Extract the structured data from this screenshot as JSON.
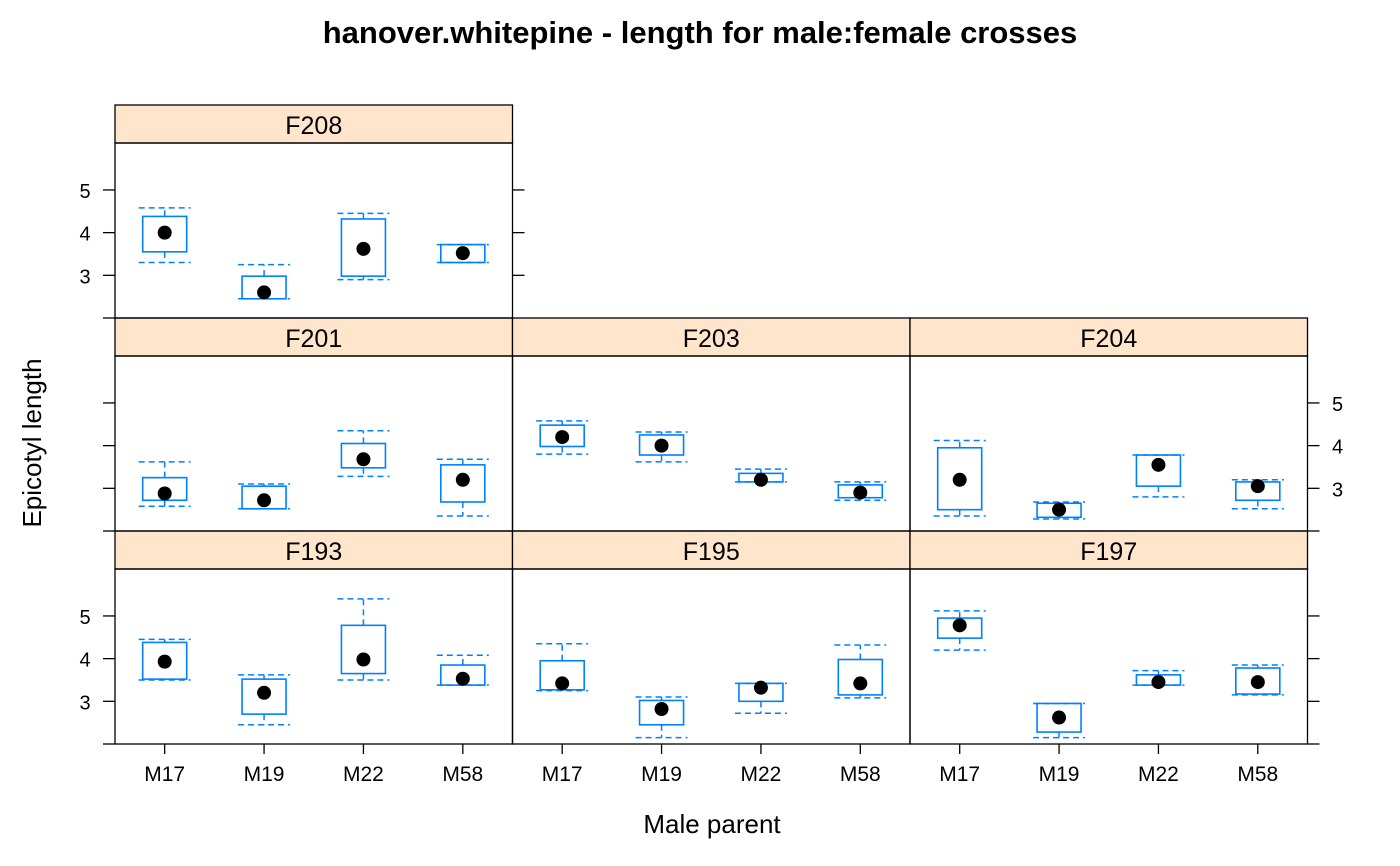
{
  "chart_data": {
    "type": "box",
    "title": "hanover.whitepine - length for male:female crosses",
    "xlabel": "Male parent",
    "ylabel": "Epicotyl length",
    "categories": [
      "M17",
      "M19",
      "M22",
      "M58"
    ],
    "ylim": [
      2.0,
      6.1
    ],
    "yticks": [
      3,
      4,
      5
    ],
    "colors": {
      "strip": "#ffe5cc",
      "box": "#0080ff",
      "point": "#000000",
      "frame": "#000000"
    },
    "panels": [
      {
        "name": "F193",
        "row": 0,
        "col": 0,
        "boxes": [
          {
            "category": "M17",
            "min": 3.5,
            "q1": 3.52,
            "median": 3.93,
            "q3": 4.38,
            "max": 4.45
          },
          {
            "category": "M19",
            "min": 2.45,
            "q1": 2.7,
            "median": 3.2,
            "q3": 3.52,
            "max": 3.62
          },
          {
            "category": "M22",
            "min": 3.5,
            "q1": 3.65,
            "median": 3.98,
            "q3": 4.78,
            "max": 5.4
          },
          {
            "category": "M58",
            "min": 3.38,
            "q1": 3.38,
            "median": 3.53,
            "q3": 3.85,
            "max": 4.08
          }
        ]
      },
      {
        "name": "F195",
        "row": 0,
        "col": 1,
        "boxes": [
          {
            "category": "M17",
            "min": 3.25,
            "q1": 3.27,
            "median": 3.42,
            "q3": 3.95,
            "max": 4.35
          },
          {
            "category": "M19",
            "min": 2.15,
            "q1": 2.45,
            "median": 2.82,
            "q3": 3.02,
            "max": 3.1
          },
          {
            "category": "M22",
            "min": 2.72,
            "q1": 3.0,
            "median": 3.32,
            "q3": 3.42,
            "max": 3.42
          },
          {
            "category": "M58",
            "min": 3.08,
            "q1": 3.15,
            "median": 3.42,
            "q3": 3.98,
            "max": 4.32
          }
        ]
      },
      {
        "name": "F197",
        "row": 0,
        "col": 2,
        "boxes": [
          {
            "category": "M17",
            "min": 4.2,
            "q1": 4.48,
            "median": 4.78,
            "q3": 4.95,
            "max": 5.12
          },
          {
            "category": "M19",
            "min": 2.15,
            "q1": 2.28,
            "median": 2.62,
            "q3": 2.95,
            "max": 2.95
          },
          {
            "category": "M22",
            "min": 3.38,
            "q1": 3.38,
            "median": 3.45,
            "q3": 3.62,
            "max": 3.72
          },
          {
            "category": "M58",
            "min": 3.15,
            "q1": 3.17,
            "median": 3.45,
            "q3": 3.78,
            "max": 3.85
          }
        ]
      },
      {
        "name": "F201",
        "row": 1,
        "col": 0,
        "boxes": [
          {
            "category": "M17",
            "min": 2.58,
            "q1": 2.72,
            "median": 2.88,
            "q3": 3.25,
            "max": 3.62
          },
          {
            "category": "M19",
            "min": 2.52,
            "q1": 2.52,
            "median": 2.72,
            "q3": 3.05,
            "max": 3.1
          },
          {
            "category": "M22",
            "min": 3.28,
            "q1": 3.48,
            "median": 3.68,
            "q3": 4.05,
            "max": 4.35
          },
          {
            "category": "M58",
            "min": 2.35,
            "q1": 2.68,
            "median": 3.2,
            "q3": 3.55,
            "max": 3.68
          }
        ]
      },
      {
        "name": "F203",
        "row": 1,
        "col": 1,
        "boxes": [
          {
            "category": "M17",
            "min": 3.8,
            "q1": 3.98,
            "median": 4.2,
            "q3": 4.48,
            "max": 4.58
          },
          {
            "category": "M19",
            "min": 3.62,
            "q1": 3.78,
            "median": 4.0,
            "q3": 4.25,
            "max": 4.32
          },
          {
            "category": "M22",
            "min": 3.15,
            "q1": 3.15,
            "median": 3.2,
            "q3": 3.35,
            "max": 3.45
          },
          {
            "category": "M58",
            "min": 2.72,
            "q1": 2.78,
            "median": 2.9,
            "q3": 3.08,
            "max": 3.15
          }
        ]
      },
      {
        "name": "F204",
        "row": 1,
        "col": 2,
        "boxes": [
          {
            "category": "M17",
            "min": 2.35,
            "q1": 2.5,
            "median": 3.2,
            "q3": 3.95,
            "max": 4.12
          },
          {
            "category": "M19",
            "min": 2.28,
            "q1": 2.32,
            "median": 2.5,
            "q3": 2.65,
            "max": 2.68
          },
          {
            "category": "M22",
            "min": 2.8,
            "q1": 3.05,
            "median": 3.55,
            "q3": 3.78,
            "max": 3.78
          },
          {
            "category": "M58",
            "min": 2.52,
            "q1": 2.72,
            "median": 3.05,
            "q3": 3.15,
            "max": 3.2
          }
        ]
      },
      {
        "name": "F208",
        "row": 2,
        "col": 0,
        "boxes": [
          {
            "category": "M17",
            "min": 3.3,
            "q1": 3.55,
            "median": 4.0,
            "q3": 4.38,
            "max": 4.58
          },
          {
            "category": "M19",
            "min": 2.45,
            "q1": 2.45,
            "median": 2.6,
            "q3": 2.98,
            "max": 3.25
          },
          {
            "category": "M22",
            "min": 2.9,
            "q1": 2.98,
            "median": 3.62,
            "q3": 4.32,
            "max": 4.45
          },
          {
            "category": "M58",
            "min": 3.3,
            "q1": 3.3,
            "median": 3.52,
            "q3": 3.72,
            "max": 3.72
          }
        ]
      }
    ]
  }
}
